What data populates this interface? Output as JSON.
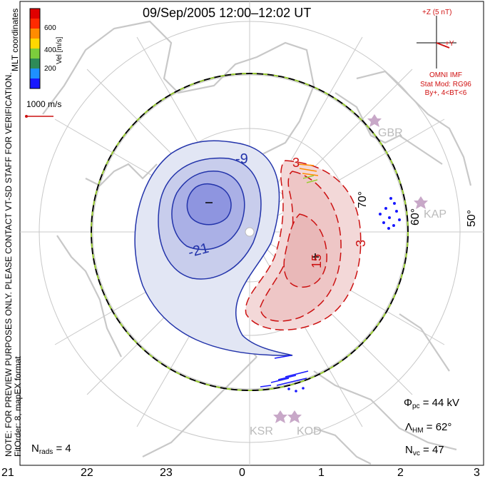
{
  "title": "09/Sep/2005 12:00–12:02 UT",
  "colorbar": {
    "ticks": [
      "600",
      "400",
      "200"
    ],
    "label": "Vel [m/s]",
    "colors": [
      "#1818ff",
      "#1e90ff",
      "#2e8b57",
      "#7ccd3c",
      "#ffd700",
      "#ff8c00",
      "#ff2a00",
      "#e00000"
    ]
  },
  "reference_vector": "1000 m/s",
  "side_text": {
    "line1": "NOTE: FOR PREVIEW PURPOSES ONLY. PLEASE CONTACT VT-SD STAFF FOR VERIFICATION.",
    "line2": "FitOrder: 8, mapEX format",
    "line3": "MLT coordinates"
  },
  "imf": {
    "z_label": "+Z (5 nT)",
    "y_label": "+Y",
    "source": "OMNI IMF",
    "model": "Stat Mod: RG96",
    "model_params": "By+, 4<BT<6",
    "color": "#d01010"
  },
  "latitude_labels": [
    "70°",
    "60°",
    "50°"
  ],
  "mlt_ticks": [
    "21",
    "22",
    "23",
    "0",
    "1",
    "2",
    "3"
  ],
  "contour_labels": {
    "neg_outer": "-9",
    "neg_inner": "-21",
    "pos_outer": "3",
    "pos_mid": "3",
    "pos_inner": "15"
  },
  "radar_labels": [
    "GBR",
    "KAP",
    "KSR",
    "KOD"
  ],
  "stats": {
    "phi_symbol": "Φ",
    "phi_sub": "pc",
    "phi_value": "= 44 kV",
    "lambda_symbol": "Λ",
    "lambda_sub": "HM",
    "lambda_value": "= 62°",
    "nvc_symbol": "N",
    "nvc_sub": "vc",
    "nvc_value": "= 47",
    "nrads_symbol": "N",
    "nrads_sub": "rads",
    "nrads_value": "= 4"
  },
  "colors": {
    "negative_cell": "#2233aa",
    "positive_cell": "#cc1111",
    "boundary_green": "#9acd32"
  }
}
